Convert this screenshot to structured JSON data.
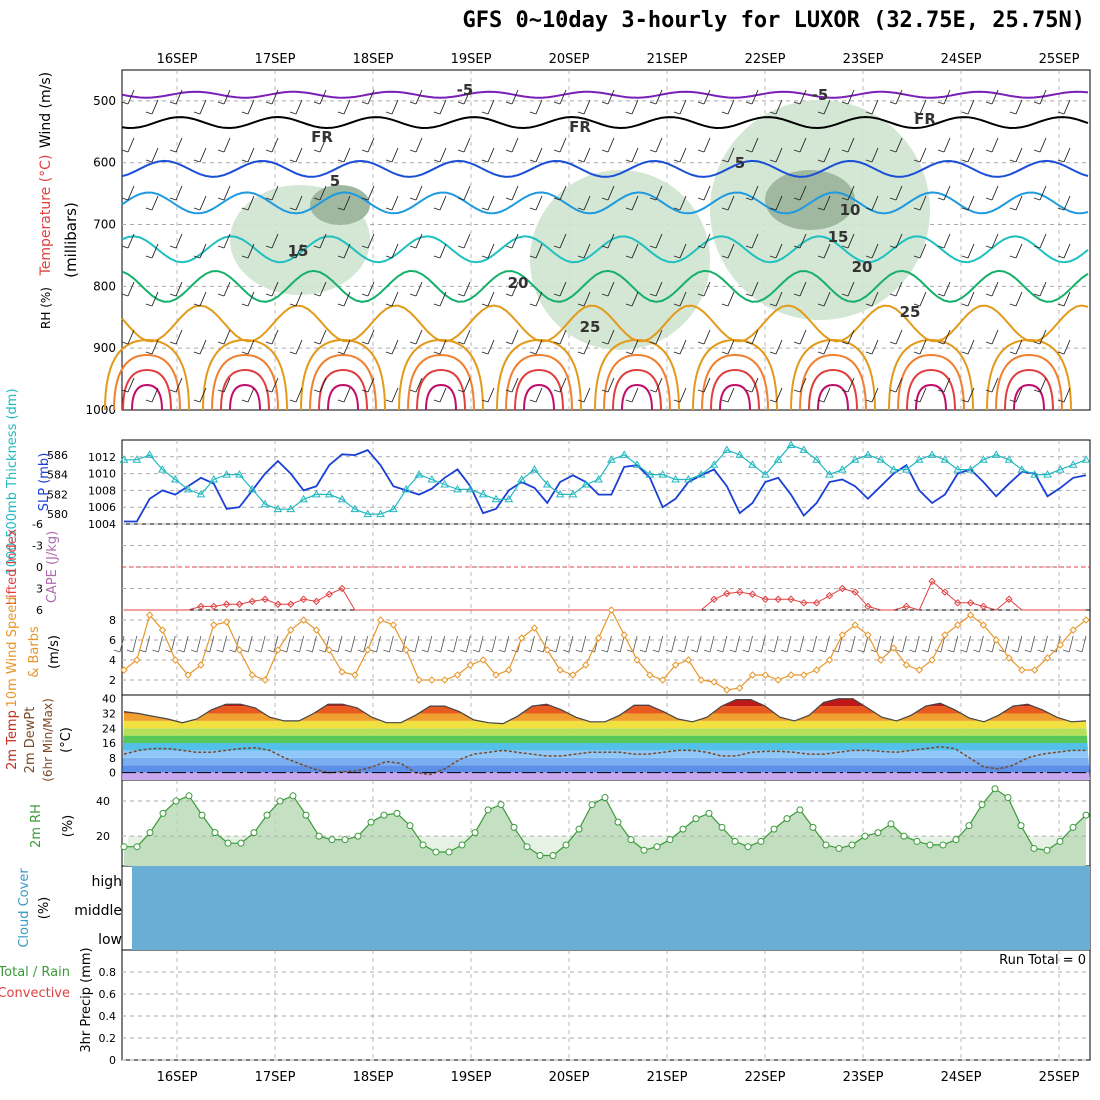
{
  "header": {
    "title": "GFS 0~10day 3-hourly for LUXOR (32.75E, 25.75N)"
  },
  "dates": [
    "16SEP",
    "17SEP",
    "18SEP",
    "19SEP",
    "20SEP",
    "21SEP",
    "22SEP",
    "23SEP",
    "24SEP",
    "25SEP"
  ],
  "colors": {
    "rh_fill": "#cfe3cf",
    "rh_fill_dark": "#9fb89f",
    "slp": "#1a3fd6",
    "thickness": "#22b8c0",
    "lifted": "#e04040",
    "wind10": "#e8962a",
    "rh2m": "#3a9a3a",
    "cloud": "#6aaed6"
  },
  "chart_data": [
    {
      "type": "contour",
      "name": "upper-air",
      "ylabel_parts": [
        "RH (%)",
        "Temperature (°C)",
        "Wind (m/s)"
      ],
      "ylabel2": "(millibars)",
      "y_ticks": [
        "500",
        "600",
        "700",
        "800",
        "900",
        "1000"
      ],
      "ylim": [
        450,
        1000
      ],
      "isotherms": [
        {
          "label": "-5",
          "pressure": 490,
          "color": "#7a1fb8"
        },
        {
          "label": "FR",
          "pressure": 535,
          "color": "#000000"
        },
        {
          "label": "5",
          "pressure": 610,
          "color": "#1a4fd6"
        },
        {
          "label": "10",
          "pressure": 665,
          "color": "#1f9ae0"
        },
        {
          "label": "15",
          "pressure": 740,
          "color": "#1ec0c0"
        },
        {
          "label": "20",
          "pressure": 800,
          "color": "#15b06a"
        },
        {
          "label": "25",
          "pressure": 860,
          "color": "#e39a1a"
        }
      ],
      "contour_labels": [
        "-5",
        "-5",
        "FR",
        "FR",
        "FR",
        "5",
        "5",
        "10",
        "15",
        "15",
        "20",
        "20",
        "25",
        "25"
      ]
    },
    {
      "type": "line",
      "name": "slp-thickness",
      "ylabel_left": "1000-500mb Thickness (dm)",
      "ylabel_right": "SLP (mb)",
      "left_ticks": [
        "586",
        "584",
        "582",
        "580"
      ],
      "right_ticks": [
        "1012",
        "1010",
        "1008",
        "1006",
        "1004"
      ],
      "ylim_slp": [
        1004,
        1014
      ],
      "ylim_thk": [
        579,
        587.5
      ],
      "series": [
        {
          "name": "SLP",
          "unit": "mb",
          "values": [
            1004.3,
            1004.3,
            1007,
            1008,
            1007.5,
            1008.5,
            1009.5,
            1008.8,
            1005.8,
            1006,
            1008,
            1010,
            1011.5,
            1010,
            1008,
            1008.5,
            1011,
            1012.3,
            1012.2,
            1012.8,
            1011,
            1008.5,
            1008,
            1007.5,
            1008.2,
            1009.5,
            1010.5,
            1008.5,
            1005.3,
            1005.8,
            1008,
            1009,
            1008.3,
            1006.5,
            1009,
            1009.8,
            1009,
            1007.5,
            1007.5,
            1010.8,
            1011,
            1009.5,
            1006,
            1007,
            1009,
            1009.8,
            1010.5,
            1008.5,
            1005.3,
            1006.5,
            1009,
            1009.5,
            1007.5,
            1005,
            1006.5,
            1009,
            1009.3,
            1008.5,
            1007,
            1008.5,
            1010,
            1011,
            1008,
            1006.5,
            1007.5,
            1010,
            1010.5,
            1009,
            1007.3,
            1008.8,
            1010.2,
            1010,
            1007.3,
            1008.3,
            1009.5,
            1009.8
          ]
        },
        {
          "name": "Thickness",
          "unit": "dm",
          "values": [
            585.5,
            585.5,
            586,
            584.5,
            583.5,
            582.5,
            582,
            583.5,
            584,
            584,
            582.5,
            581,
            580.5,
            580.5,
            581.5,
            582,
            582,
            581.5,
            580.5,
            580,
            580,
            580.5,
            582.5,
            584,
            583.5,
            583,
            582.5,
            582.5,
            582,
            581.5,
            581.5,
            583.5,
            584.5,
            583,
            582,
            582,
            583,
            583.5,
            585.5,
            586,
            585,
            584,
            584,
            583.5,
            583.5,
            584,
            585,
            586.5,
            586,
            585,
            584,
            585.5,
            587,
            586.5,
            585.5,
            584,
            584.5,
            585.5,
            586,
            585.5,
            584.5,
            584.5,
            585.5,
            586,
            585.5,
            584.5,
            584.5,
            585.5,
            586,
            585.5,
            584.5,
            584,
            584,
            584.5,
            585,
            585.5
          ]
        }
      ]
    },
    {
      "type": "line",
      "name": "cape-lifted",
      "ylabel_parts": [
        "CAPE (J/kg)",
        "Lifted Index"
      ],
      "y_ticks": [
        "-6",
        "-3",
        "0",
        "3",
        "6"
      ],
      "ylim": [
        -6,
        6
      ],
      "series": [
        {
          "name": "Lifted Index",
          "values": [
            7,
            7,
            7,
            7,
            7,
            7,
            5.5,
            5.5,
            5.2,
            5.2,
            4.8,
            4.5,
            5.2,
            5.2,
            4.5,
            4.8,
            3.8,
            3,
            6.5,
            7,
            7,
            7,
            7,
            7,
            7,
            7,
            7,
            7,
            7,
            7,
            7,
            7,
            6,
            6,
            6.5,
            7,
            6,
            7,
            7,
            7,
            7,
            7,
            7,
            7,
            7,
            7,
            4.5,
            3.7,
            3.5,
            3.8,
            4.5,
            4.5,
            4.5,
            5,
            5,
            4,
            3,
            3.5,
            5.5,
            6,
            6,
            5.5,
            6,
            2,
            3.5,
            5,
            5,
            5.5,
            7,
            4.5,
            7,
            7,
            7,
            7,
            7,
            7
          ]
        }
      ]
    },
    {
      "type": "line",
      "name": "wind10m",
      "ylabel_parts": [
        "10m Wind Speed",
        "& Barbs",
        "(m/s)"
      ],
      "y_ticks": [
        "8",
        "6",
        "4",
        "2"
      ],
      "ylim": [
        0.5,
        9
      ],
      "series": [
        {
          "name": "10m Wind Speed",
          "unit": "m/s",
          "values": [
            3,
            4,
            8.5,
            7,
            4,
            2.5,
            3.5,
            7.5,
            7.8,
            5,
            2.5,
            2,
            5,
            7,
            8,
            7,
            5,
            2.8,
            2.5,
            5,
            8,
            7.5,
            5,
            2,
            2,
            2,
            2.5,
            3.5,
            4,
            2.5,
            3,
            6.2,
            7.2,
            5,
            3,
            2.5,
            3.5,
            6.2,
            9,
            6.5,
            4,
            2.5,
            2,
            3.5,
            4,
            2,
            1.8,
            1,
            1.2,
            2.5,
            2.5,
            2,
            2.5,
            2.5,
            3,
            4,
            6.5,
            7.5,
            6.5,
            4,
            5.2,
            3.5,
            3,
            4,
            6.5,
            7.5,
            8.5,
            7.5,
            6,
            4.2,
            3,
            3,
            4.2,
            5.5,
            7,
            8
          ]
        }
      ]
    },
    {
      "type": "area",
      "name": "temp2m",
      "ylabel_parts": [
        "2m Temp",
        "2m DewPt",
        "(6hr Min/Max)",
        "(°C)"
      ],
      "y_ticks": [
        "40",
        "32",
        "24",
        "16",
        "8",
        "0"
      ],
      "ylim": [
        -4,
        42
      ],
      "series": [
        {
          "name": "2m Temp",
          "unit": "°C",
          "values": [
            33,
            32,
            30.5,
            29,
            27,
            29,
            34,
            37,
            37,
            35,
            30,
            28,
            28,
            32,
            37,
            37,
            35,
            30,
            27,
            27,
            31,
            36,
            36,
            33,
            28.5,
            27,
            26.5,
            30.5,
            36,
            37,
            34,
            30,
            27.5,
            27.5,
            31,
            36.5,
            36.5,
            33,
            29,
            27.5,
            30,
            36,
            39.5,
            39.5,
            36,
            30,
            28,
            31,
            38,
            40,
            40,
            35,
            30,
            28,
            31,
            36,
            37.5,
            34,
            29.5,
            27.5,
            31,
            36,
            37,
            34,
            30,
            27.5,
            28
          ]
        },
        {
          "name": "2m DewPt",
          "unit": "°C",
          "values": [
            10,
            12,
            13,
            13,
            12,
            11,
            11,
            12,
            13,
            13.5,
            12,
            8,
            5,
            2,
            0,
            0.5,
            1,
            3,
            6,
            5,
            0,
            -1,
            2,
            7,
            10,
            11,
            12,
            11,
            10,
            9,
            9,
            10,
            11,
            11,
            11,
            10,
            10,
            11,
            12,
            12,
            11,
            9,
            9,
            11,
            11.5,
            11.5,
            11,
            10,
            10,
            11,
            12,
            12,
            11.5,
            11,
            12,
            13,
            14,
            13,
            8,
            3,
            2,
            4,
            8,
            10,
            11,
            12,
            12
          ]
        }
      ]
    },
    {
      "type": "area",
      "name": "rh2m",
      "ylabel_parts": [
        "2m RH",
        "(%)"
      ],
      "y_ticks": [
        "40",
        "20"
      ],
      "ylim": [
        3,
        52
      ],
      "series": [
        {
          "name": "2m RH",
          "unit": "%",
          "values": [
            14,
            14,
            22,
            33,
            40,
            43,
            32,
            22,
            16,
            16,
            22,
            32,
            40,
            43,
            32,
            20,
            18,
            18,
            20,
            28,
            32,
            33,
            26,
            15,
            11,
            11,
            15,
            22,
            35,
            38,
            25,
            14,
            9,
            9,
            15,
            24,
            38,
            42,
            28,
            18,
            12,
            14,
            18,
            24,
            30,
            33,
            25,
            17,
            14,
            17,
            24,
            30,
            35,
            25,
            15,
            13,
            15,
            20,
            22,
            27,
            20,
            17,
            15,
            15,
            18,
            26,
            38,
            47,
            42,
            26,
            13,
            12,
            17,
            25,
            32
          ]
        }
      ]
    },
    {
      "type": "heatmap",
      "name": "cloud-cover",
      "ylabel_parts": [
        "Cloud Cover",
        "(%)"
      ],
      "levels": [
        "high",
        "middle",
        "low"
      ]
    },
    {
      "type": "bar",
      "name": "precip",
      "ylabel_parts": [
        "Total / Rain",
        "Convective",
        "3hr Precip (mm)"
      ],
      "y_ticks": [
        "0.8",
        "0.6",
        "0.4",
        "0.2",
        "0"
      ],
      "ylim": [
        0,
        1
      ],
      "annotation": "Run Total = 0",
      "values": []
    }
  ]
}
